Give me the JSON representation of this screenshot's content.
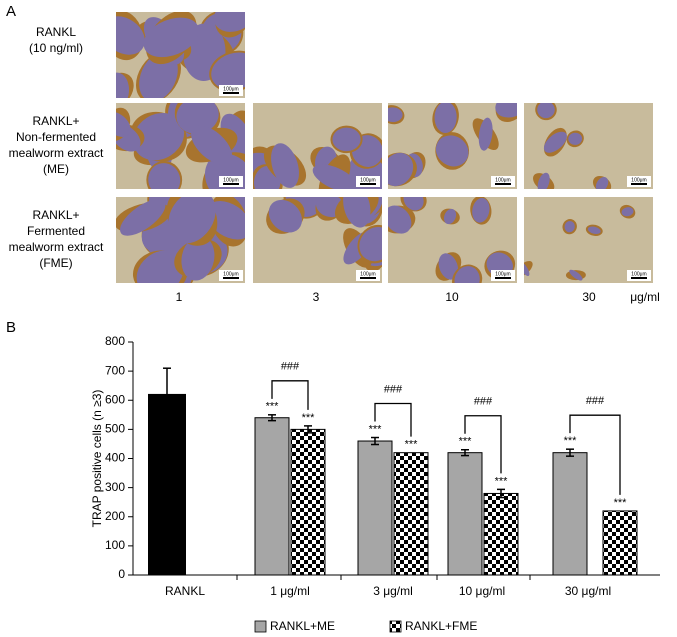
{
  "panel_a": {
    "label": "A",
    "row_labels": [
      [
        "RANKL",
        "(10 ng/ml)"
      ],
      [
        "RANKL+",
        "Non-fermented",
        "mealworm extract",
        "(ME)"
      ],
      [
        "RANKL+",
        "Fermented",
        "mealworm extract",
        "(FME)"
      ]
    ],
    "column_labels": [
      "1",
      "3",
      "10",
      "30"
    ],
    "unit": "μg/ml",
    "scale_bar": "100μm"
  },
  "chart_data": {
    "type": "bar",
    "label": "B",
    "ylabel": "TRAP positive cells (n ≥3)",
    "categories": [
      "RANKL",
      "1 μg/ml",
      "3 μg/ml",
      "10 μg/ml",
      "30 μg/ml"
    ],
    "series": [
      {
        "color": "#000000",
        "pattern": "solid",
        "values": [
          620,
          null,
          null,
          null,
          null
        ],
        "errors": [
          90,
          null,
          null,
          null,
          null
        ],
        "significance": [
          null,
          null,
          null,
          null,
          null
        ]
      },
      {
        "name": "RANKL+ME",
        "color": "#a6a6a6",
        "pattern": "solid",
        "values": [
          null,
          540,
          460,
          420,
          420
        ],
        "errors": [
          null,
          10,
          12,
          10,
          12
        ],
        "significance": [
          null,
          "***",
          "***",
          "***",
          "***"
        ]
      },
      {
        "name": "RANKL+FME",
        "color": "#000000",
        "pattern": "checker",
        "values": [
          null,
          500,
          420,
          280,
          220
        ],
        "errors": [
          null,
          12,
          null,
          14,
          null
        ],
        "significance": [
          null,
          "***",
          "***",
          "***",
          "***"
        ]
      }
    ],
    "group_annotations": [
      null,
      "###",
      "###",
      "###",
      "###"
    ],
    "ylim": [
      0,
      800
    ],
    "yticks": [
      0,
      100,
      200,
      300,
      400,
      500,
      600,
      700,
      800
    ],
    "grid": false
  }
}
